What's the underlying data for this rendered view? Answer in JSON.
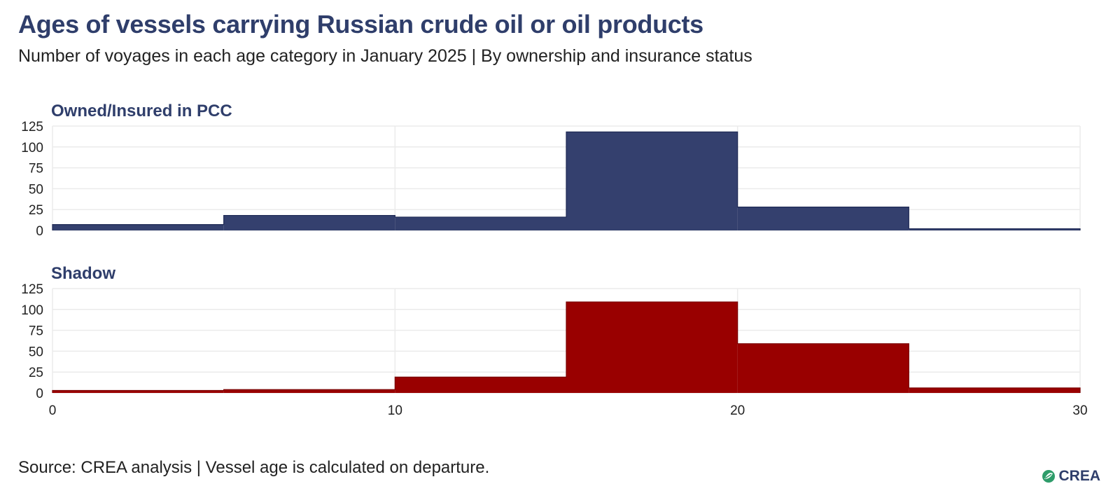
{
  "header": {
    "title": "Ages of vessels carrying Russian crude oil or oil products",
    "subtitle": "Number of voyages in each age category in January 2025 | By ownership and insurance status"
  },
  "footer": {
    "source": "Source: CREA analysis | Vessel age is calculated on departure.",
    "logo_text": "CREA"
  },
  "colors": {
    "owned": "#34406e",
    "shadow": "#990000",
    "grid": "#ebebeb",
    "title": "#2f3e6b"
  },
  "chart_data": [
    {
      "type": "bar",
      "title": "Owned/Insured in PCC",
      "bin_edges": [
        0,
        5,
        10,
        15,
        20,
        25,
        30
      ],
      "values": [
        7,
        18,
        16,
        118,
        28,
        2
      ],
      "x_ticks": [
        0,
        10,
        20,
        30
      ],
      "y_ticks": [
        0,
        25,
        50,
        75,
        100,
        125
      ],
      "xlim": [
        0,
        30
      ],
      "ylim": [
        0,
        125
      ],
      "grid": true,
      "color": "#34406e"
    },
    {
      "type": "bar",
      "title": "Shadow",
      "bin_edges": [
        0,
        5,
        10,
        15,
        20,
        25,
        30
      ],
      "values": [
        3,
        4,
        19,
        109,
        59,
        6
      ],
      "x_ticks": [
        0,
        10,
        20,
        30
      ],
      "y_ticks": [
        0,
        25,
        50,
        75,
        100,
        125
      ],
      "xlim": [
        0,
        30
      ],
      "ylim": [
        0,
        125
      ],
      "grid": true,
      "color": "#990000"
    }
  ]
}
